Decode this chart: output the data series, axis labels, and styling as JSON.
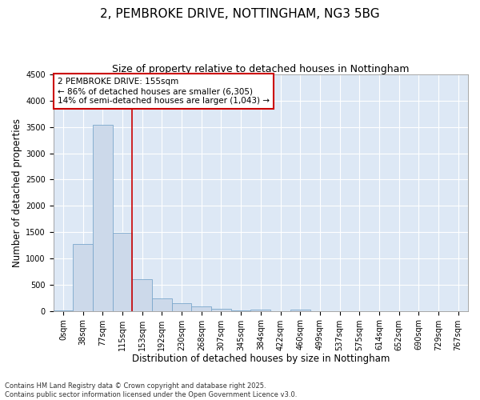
{
  "title_line1": "2, PEMBROKE DRIVE, NOTTINGHAM, NG3 5BG",
  "title_line2": "Size of property relative to detached houses in Nottingham",
  "xlabel": "Distribution of detached houses by size in Nottingham",
  "ylabel": "Number of detached properties",
  "bar_color": "#ccd9ea",
  "bar_edge_color": "#7ba7cc",
  "background_color": "#dde8f5",
  "grid_color": "#ffffff",
  "annotation_box_color": "#cc0000",
  "annotation_line_color": "#cc0000",
  "fig_bg_color": "#ffffff",
  "categories": [
    "0sqm",
    "38sqm",
    "77sqm",
    "115sqm",
    "153sqm",
    "192sqm",
    "230sqm",
    "268sqm",
    "307sqm",
    "345sqm",
    "384sqm",
    "422sqm",
    "460sqm",
    "499sqm",
    "537sqm",
    "575sqm",
    "614sqm",
    "652sqm",
    "690sqm",
    "729sqm",
    "767sqm"
  ],
  "values": [
    10,
    1280,
    3540,
    1490,
    600,
    235,
    145,
    80,
    35,
    10,
    30,
    0,
    20,
    0,
    0,
    0,
    0,
    0,
    0,
    0,
    0
  ],
  "property_line_index": 3,
  "annotation_line1": "2 PEMBROKE DRIVE: 155sqm",
  "annotation_line2": "← 86% of detached houses are smaller (6,305)",
  "annotation_line3": "14% of semi-detached houses are larger (1,043) →",
  "ylim": [
    0,
    4500
  ],
  "yticks": [
    0,
    500,
    1000,
    1500,
    2000,
    2500,
    3000,
    3500,
    4000,
    4500
  ],
  "footnote": "Contains HM Land Registry data © Crown copyright and database right 2025.\nContains public sector information licensed under the Open Government Licence v3.0.",
  "title_fontsize": 11,
  "subtitle_fontsize": 9,
  "axis_label_fontsize": 8.5,
  "tick_fontsize": 7,
  "annotation_fontsize": 7.5,
  "footnote_fontsize": 6
}
